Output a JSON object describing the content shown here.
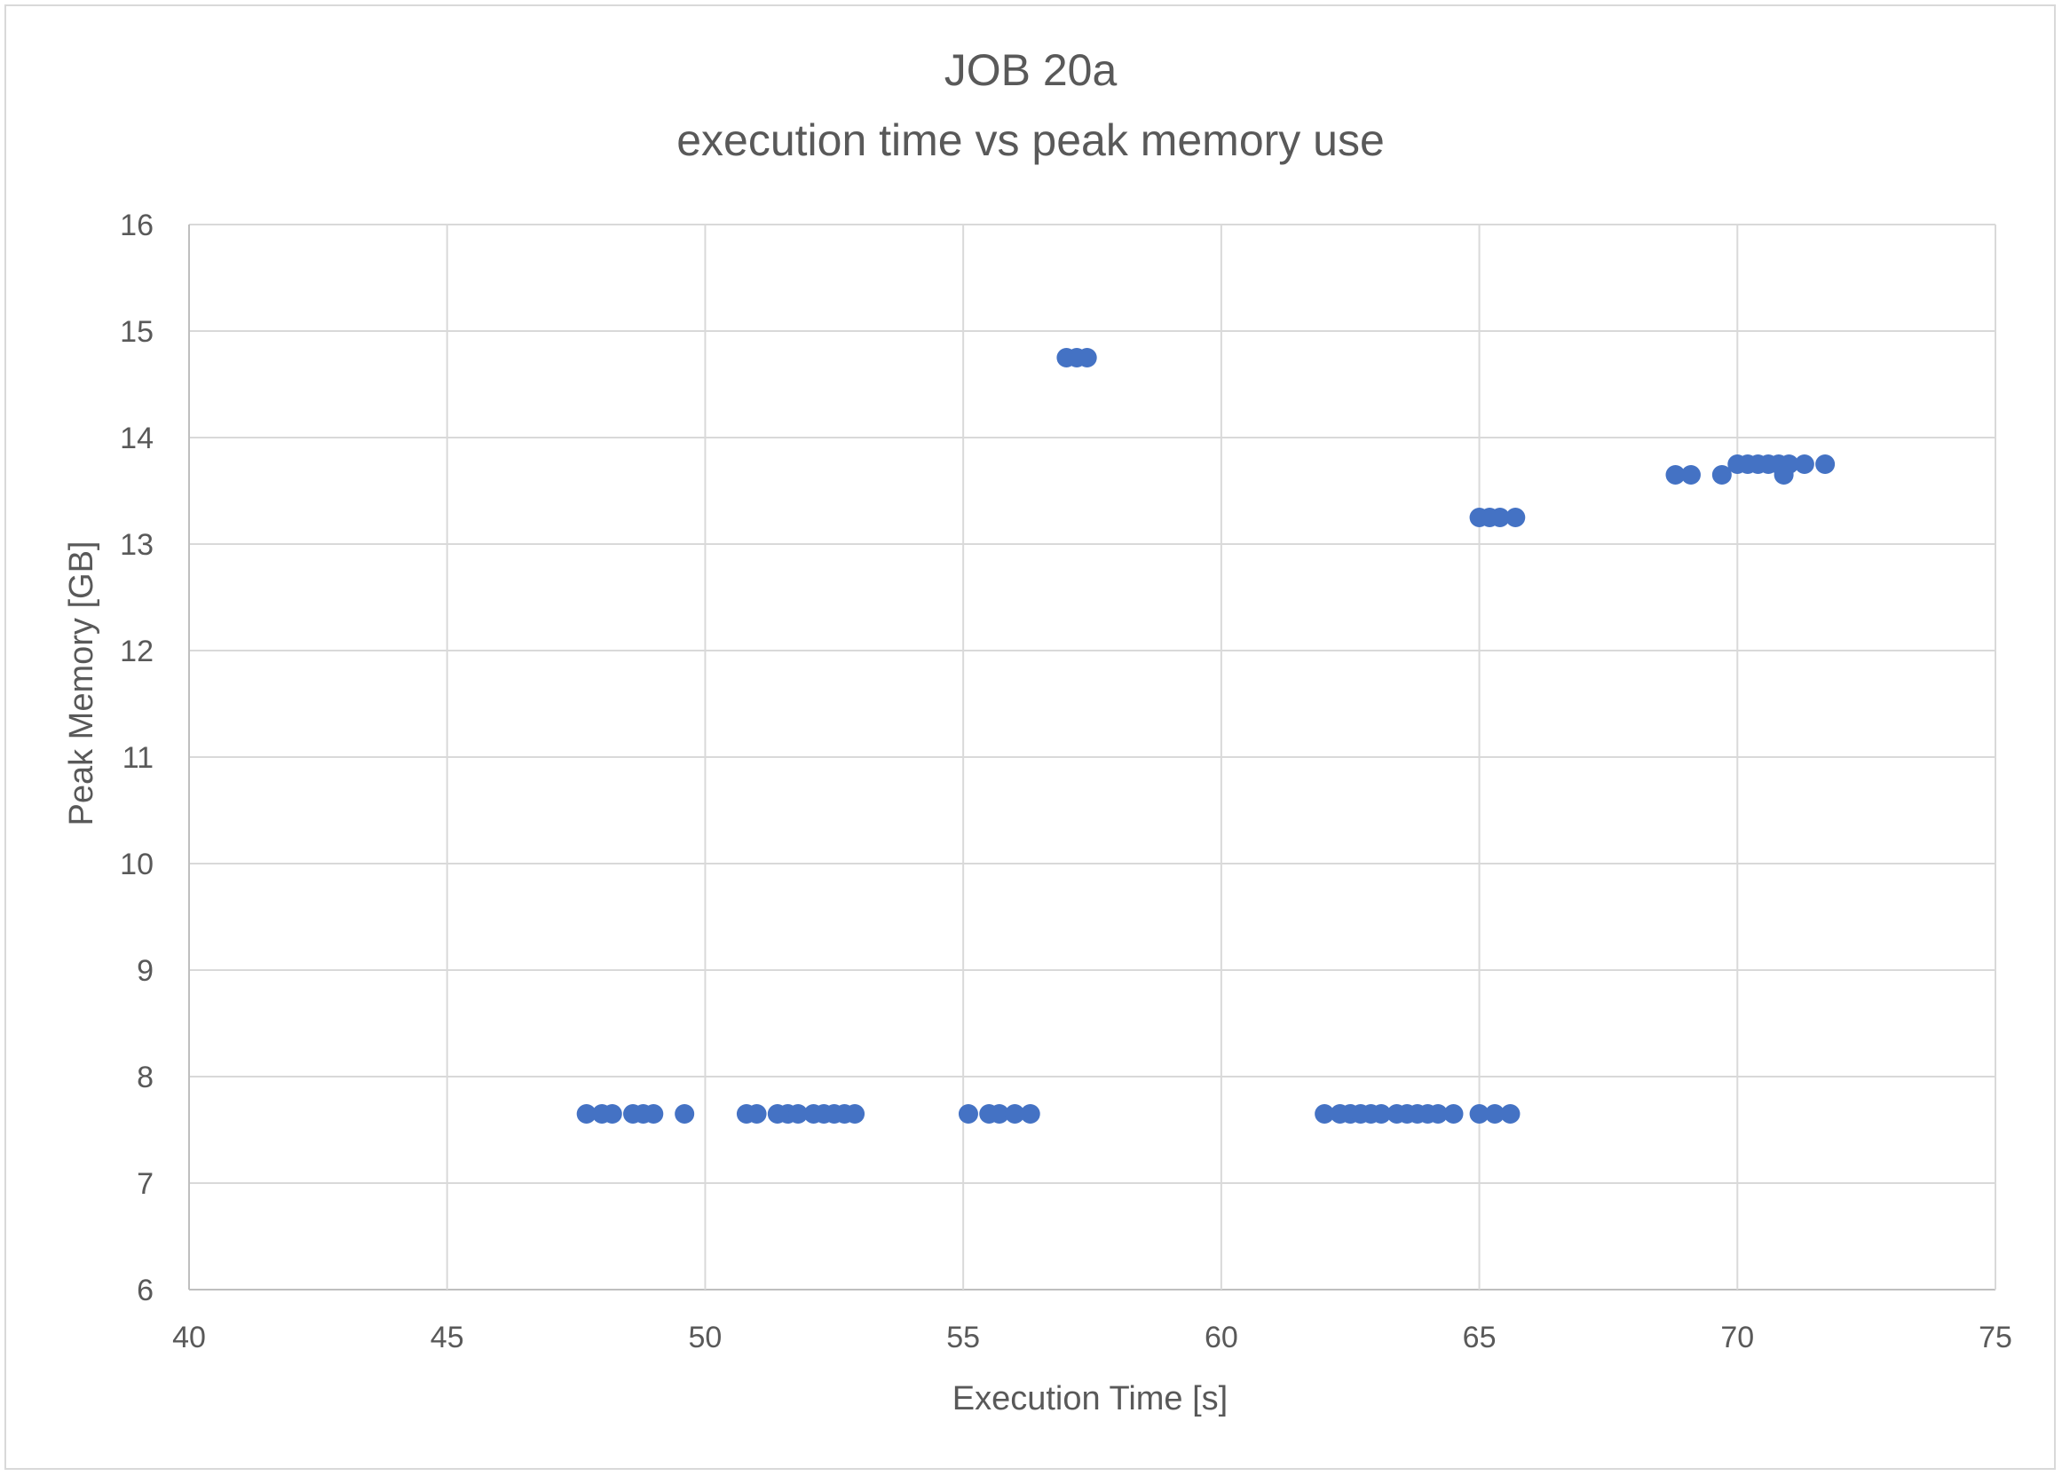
{
  "chart_data": {
    "type": "scatter",
    "title": [
      "JOB 20a",
      "execution time vs peak memory use"
    ],
    "xlabel": "Execution Time [s]",
    "ylabel": "Peak Memory [GB]",
    "xlim": [
      40,
      75
    ],
    "ylim": [
      6,
      16
    ],
    "x_ticks": [
      "40",
      "45",
      "50",
      "55",
      "60",
      "65",
      "70",
      "75"
    ],
    "y_ticks": [
      "6",
      "7",
      "8",
      "9",
      "10",
      "11",
      "12",
      "13",
      "14",
      "15",
      "16"
    ],
    "grid": true,
    "legend": "none",
    "marker_color": "#4472C4",
    "series": [
      {
        "points": [
          [
            47.7,
            7.65
          ],
          [
            48.0,
            7.65
          ],
          [
            48.2,
            7.65
          ],
          [
            48.6,
            7.65
          ],
          [
            48.8,
            7.65
          ],
          [
            49.0,
            7.65
          ],
          [
            49.6,
            7.65
          ],
          [
            50.8,
            7.65
          ],
          [
            51.0,
            7.65
          ],
          [
            51.4,
            7.65
          ],
          [
            51.6,
            7.65
          ],
          [
            51.8,
            7.65
          ],
          [
            52.1,
            7.65
          ],
          [
            52.3,
            7.65
          ],
          [
            52.5,
            7.65
          ],
          [
            52.7,
            7.65
          ],
          [
            52.9,
            7.65
          ],
          [
            55.1,
            7.65
          ],
          [
            55.5,
            7.65
          ],
          [
            55.7,
            7.65
          ],
          [
            56.0,
            7.65
          ],
          [
            56.3,
            7.65
          ],
          [
            57.0,
            14.75
          ],
          [
            57.2,
            14.75
          ],
          [
            57.4,
            14.75
          ],
          [
            62.0,
            7.65
          ],
          [
            62.3,
            7.65
          ],
          [
            62.5,
            7.65
          ],
          [
            62.7,
            7.65
          ],
          [
            62.9,
            7.65
          ],
          [
            63.1,
            7.65
          ],
          [
            63.4,
            7.65
          ],
          [
            63.6,
            7.65
          ],
          [
            63.8,
            7.65
          ],
          [
            64.0,
            7.65
          ],
          [
            64.2,
            7.65
          ],
          [
            64.5,
            7.65
          ],
          [
            65.0,
            7.65
          ],
          [
            65.3,
            7.65
          ],
          [
            65.6,
            7.65
          ],
          [
            65.0,
            13.25
          ],
          [
            65.2,
            13.25
          ],
          [
            65.4,
            13.25
          ],
          [
            65.7,
            13.25
          ],
          [
            68.8,
            13.65
          ],
          [
            69.1,
            13.65
          ],
          [
            69.7,
            13.65
          ],
          [
            70.0,
            13.75
          ],
          [
            70.2,
            13.75
          ],
          [
            70.4,
            13.75
          ],
          [
            70.6,
            13.75
          ],
          [
            70.8,
            13.75
          ],
          [
            71.0,
            13.75
          ],
          [
            70.9,
            13.65
          ],
          [
            71.3,
            13.75
          ],
          [
            71.7,
            13.75
          ]
        ]
      }
    ]
  }
}
